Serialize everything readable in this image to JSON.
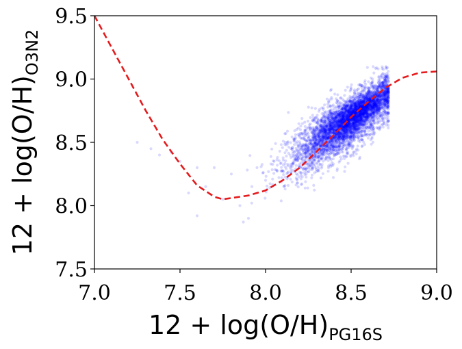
{
  "chart_data": {
    "type": "scatter",
    "title": "",
    "xlabel": "12 + log(O/H)",
    "xlabel_subscript": "PG16S",
    "ylabel": "12 + log(O/H)",
    "ylabel_subscript": "O3N2",
    "xlim": [
      7.0,
      9.0
    ],
    "ylim": [
      7.5,
      9.5
    ],
    "xticks": [
      "7.0",
      "7.5",
      "8.0",
      "8.5",
      "9.0"
    ],
    "yticks": [
      "7.5",
      "8.0",
      "8.5",
      "9.0",
      "9.5"
    ],
    "grid": false,
    "legend": "none",
    "colors": {
      "points": "#0000ff",
      "fit": "#e41a1c",
      "axes": "#000000"
    },
    "series": [
      {
        "type": "scatter",
        "points_alpha": 0.15,
        "cloud": {
          "core": {
            "x_mean": 8.45,
            "y_mean": 8.62,
            "x_sd": 0.16,
            "y_sd": 0.17,
            "corr": 0.78
          },
          "dense_region": {
            "x_mean": 8.55,
            "y_mean": 8.75
          },
          "n_points_approx": 5000
        },
        "x": [
          7.25,
          7.33,
          7.38,
          7.45,
          7.5,
          7.55,
          7.6,
          7.6,
          7.65,
          7.7,
          7.75,
          7.8,
          7.85,
          7.87,
          7.9,
          7.92,
          7.95,
          8.0,
          8.05
        ],
        "y": [
          8.5,
          8.45,
          8.4,
          8.42,
          8.35,
          8.1,
          8.3,
          7.92,
          8.15,
          8.3,
          8.05,
          8.25,
          8.0,
          7.87,
          7.9,
          8.15,
          8.3,
          8.2,
          8.35
        ]
      },
      {
        "type": "line",
        "style": "dashed",
        "x": [
          7.0,
          7.1,
          7.2,
          7.3,
          7.4,
          7.5,
          7.6,
          7.7,
          7.75,
          7.8,
          7.9,
          8.0,
          8.1,
          8.2,
          8.3,
          8.4,
          8.5,
          8.6,
          8.7,
          8.8,
          8.9,
          9.0
        ],
        "y": [
          9.5,
          9.25,
          9.0,
          8.75,
          8.52,
          8.33,
          8.16,
          8.07,
          8.05,
          8.06,
          8.08,
          8.12,
          8.2,
          8.3,
          8.43,
          8.56,
          8.7,
          8.82,
          8.93,
          9.01,
          9.05,
          9.06
        ]
      }
    ]
  }
}
